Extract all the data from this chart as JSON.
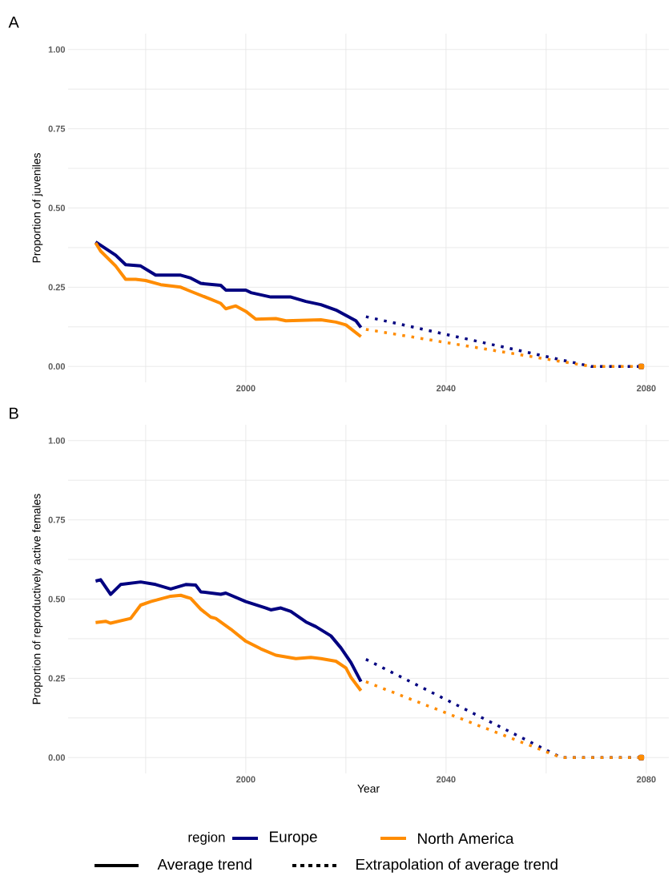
{
  "chart_data": [
    {
      "type": "line",
      "title": "A",
      "ylabel": "Proportion of juveniles",
      "xlim": [
        1964.5,
        2084.5
      ],
      "ylim": [
        -0.05,
        1.05
      ],
      "xticks": [
        {
          "value": 1980,
          "label": null
        },
        2000,
        {
          "value": 2020,
          "label": null
        },
        2040,
        {
          "value": 2060,
          "label": null
        },
        2080
      ],
      "yticks": [
        {
          "value": 0,
          "label": "0.00"
        },
        {
          "value": 0.125,
          "label": null
        },
        {
          "value": 0.25,
          "label": "0.25"
        },
        {
          "value": 0.375,
          "label": null
        },
        {
          "value": 0.5,
          "label": "0.50"
        },
        {
          "value": 0.625,
          "label": null
        },
        {
          "value": 0.75,
          "label": "0.75"
        },
        {
          "value": 0.875,
          "label": null
        },
        {
          "value": 1,
          "label": "1.00"
        }
      ],
      "grid": true,
      "series": [
        {
          "color": "#000080",
          "line_style": "solid",
          "x": [
            1970,
            1972,
            1974,
            1976,
            1979,
            1982,
            1987,
            1989,
            1991,
            1995,
            1996,
            2000,
            2001,
            2005,
            2009,
            2012,
            2015,
            2018,
            2020,
            2022,
            2023
          ],
          "values": [
            0.393,
            0.372,
            0.351,
            0.321,
            0.317,
            0.288,
            0.288,
            0.279,
            0.262,
            0.256,
            0.241,
            0.241,
            0.233,
            0.219,
            0.219,
            0.205,
            0.195,
            0.178,
            0.161,
            0.144,
            0.123
          ]
        },
        {
          "color": "#ff8c00",
          "line_style": "solid",
          "x": [
            1970,
            1971,
            1974,
            1976,
            1978,
            1980,
            1983,
            1987,
            1989,
            1993,
            1995,
            1996,
            1998,
            2000,
            2002,
            2006,
            2008,
            2015,
            2018,
            2020,
            2023
          ],
          "values": [
            0.39,
            0.364,
            0.317,
            0.275,
            0.275,
            0.271,
            0.258,
            0.25,
            0.237,
            0.212,
            0.199,
            0.182,
            0.191,
            0.174,
            0.149,
            0.151,
            0.144,
            0.147,
            0.14,
            0.131,
            0.094
          ]
        },
        {
          "color": "#000080",
          "line_style": "dotted",
          "x": [
            2024,
            2069,
            2079
          ],
          "values": [
            0.157,
            0,
            0
          ]
        },
        {
          "color": "#ff8c00",
          "line_style": "dotted",
          "x": [
            2024,
            2069,
            2079
          ],
          "values": [
            0.117,
            0,
            0
          ]
        }
      ]
    },
    {
      "type": "line",
      "title": "B",
      "ylabel": "Proportion of reproductively active females",
      "xlabel": "Year",
      "legend_title": "region",
      "annotations": [
        "Average trend",
        "Extrapolation of average trend"
      ],
      "xlim": [
        1964.5,
        2084.5
      ],
      "ylim": [
        -0.05,
        1.05
      ],
      "xticks": [
        {
          "value": 1980,
          "label": null
        },
        2000,
        {
          "value": 2020,
          "label": null
        },
        2040,
        {
          "value": 2060,
          "label": null
        },
        2080
      ],
      "yticks": [
        {
          "value": 0,
          "label": "0.00"
        },
        {
          "value": 0.125,
          "label": null
        },
        {
          "value": 0.25,
          "label": "0.25"
        },
        {
          "value": 0.375,
          "label": null
        },
        {
          "value": 0.5,
          "label": "0.50"
        },
        {
          "value": 0.625,
          "label": null
        },
        {
          "value": 0.75,
          "label": "0.75"
        },
        {
          "value": 0.875,
          "label": null
        },
        {
          "value": 1,
          "label": "1.00"
        }
      ],
      "grid": true,
      "legend": "bottom",
      "series": [
        {
          "name": "Europe",
          "color": "#000080",
          "line_style": "solid",
          "x": [
            1970,
            1971,
            1973,
            1975,
            1979,
            1982,
            1985,
            1988,
            1990,
            1991,
            1995,
            1996,
            2000,
            2004,
            2005,
            2007,
            2009,
            2012,
            2014,
            2017,
            2019,
            2021,
            2023
          ],
          "values": [
            0.557,
            0.561,
            0.515,
            0.546,
            0.554,
            0.546,
            0.532,
            0.546,
            0.544,
            0.523,
            0.515,
            0.519,
            0.492,
            0.472,
            0.466,
            0.472,
            0.461,
            0.428,
            0.413,
            0.384,
            0.346,
            0.3,
            0.24
          ]
        },
        {
          "name": "North America",
          "color": "#ff8c00",
          "line_style": "solid",
          "x": [
            1970,
            1972,
            1973,
            1977,
            1979,
            1981,
            1985,
            1987,
            1989,
            1991,
            1993,
            1994,
            1997,
            2000,
            2003,
            2006,
            2010,
            2013,
            2015,
            2018,
            2020,
            2021,
            2023
          ],
          "values": [
            0.426,
            0.43,
            0.424,
            0.439,
            0.481,
            0.492,
            0.509,
            0.512,
            0.502,
            0.468,
            0.443,
            0.439,
            0.405,
            0.367,
            0.343,
            0.323,
            0.312,
            0.316,
            0.312,
            0.304,
            0.283,
            0.253,
            0.211
          ]
        },
        {
          "color": "#000080",
          "line_style": "dotted",
          "x": [
            2024,
            2063,
            2079
          ],
          "values": [
            0.31,
            0,
            0
          ]
        },
        {
          "color": "#ff8c00",
          "line_style": "dotted",
          "x": [
            2024,
            2063,
            2079
          ],
          "values": [
            0.239,
            0,
            0
          ]
        }
      ]
    }
  ]
}
